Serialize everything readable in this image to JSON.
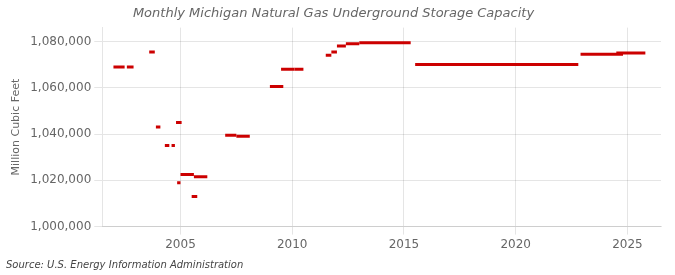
{
  "chart_data": {
    "type": "line",
    "title": "Monthly Michigan Natural Gas Underground Storage Capacity",
    "ylabel": "Million Cubic Feet",
    "annotation": "Source: U.S. Energy Information Administration",
    "color": "#cc0000",
    "grid": true,
    "xlim": [
      2001.5,
      2026.5
    ],
    "xticks": [
      2005,
      2010,
      2015,
      2020,
      2025
    ],
    "ylim": [
      1000000,
      1086000
    ],
    "yticks": [
      {
        "value": 1000000,
        "label": "1,000,000"
      },
      {
        "value": 1020000,
        "label": "1,020,000"
      },
      {
        "value": 1040000,
        "label": "1,040,000"
      },
      {
        "value": 1060000,
        "label": "1,060,000"
      },
      {
        "value": 1080000,
        "label": "1,080,000"
      }
    ],
    "segments": [
      {
        "x_start": 2002.0,
        "x_end": 2002.5,
        "value": 1069000
      },
      {
        "x_start": 2002.6,
        "x_end": 2002.9,
        "value": 1069000
      },
      {
        "x_start": 2003.6,
        "x_end": 2003.85,
        "value": 1075500
      },
      {
        "x_start": 2003.9,
        "x_end": 2004.1,
        "value": 1043000
      },
      {
        "x_start": 2004.3,
        "x_end": 2004.5,
        "value": 1035000
      },
      {
        "x_start": 2004.6,
        "x_end": 2004.75,
        "value": 1035000
      },
      {
        "x_start": 2004.8,
        "x_end": 2005.05,
        "value": 1045000
      },
      {
        "x_start": 2004.85,
        "x_end": 2005.0,
        "value": 1019000
      },
      {
        "x_start": 2005.0,
        "x_end": 2005.6,
        "value": 1022500
      },
      {
        "x_start": 2005.6,
        "x_end": 2006.2,
        "value": 1021500
      },
      {
        "x_start": 2005.5,
        "x_end": 2005.75,
        "value": 1013000
      },
      {
        "x_start": 2007.0,
        "x_end": 2007.5,
        "value": 1039500
      },
      {
        "x_start": 2007.5,
        "x_end": 2008.1,
        "value": 1039000
      },
      {
        "x_start": 2009.0,
        "x_end": 2009.6,
        "value": 1060500
      },
      {
        "x_start": 2009.5,
        "x_end": 2010.1,
        "value": 1068000
      },
      {
        "x_start": 2010.1,
        "x_end": 2010.5,
        "value": 1068000
      },
      {
        "x_start": 2011.5,
        "x_end": 2011.75,
        "value": 1074000
      },
      {
        "x_start": 2011.75,
        "x_end": 2012.0,
        "value": 1075500
      },
      {
        "x_start": 2012.0,
        "x_end": 2012.4,
        "value": 1078000
      },
      {
        "x_start": 2012.4,
        "x_end": 2013.0,
        "value": 1079000
      },
      {
        "x_start": 2013.0,
        "x_end": 2015.3,
        "value": 1079500
      },
      {
        "x_start": 2015.5,
        "x_end": 2022.8,
        "value": 1070000
      },
      {
        "x_start": 2022.9,
        "x_end": 2024.8,
        "value": 1074500
      },
      {
        "x_start": 2024.5,
        "x_end": 2025.8,
        "value": 1075000
      }
    ]
  }
}
